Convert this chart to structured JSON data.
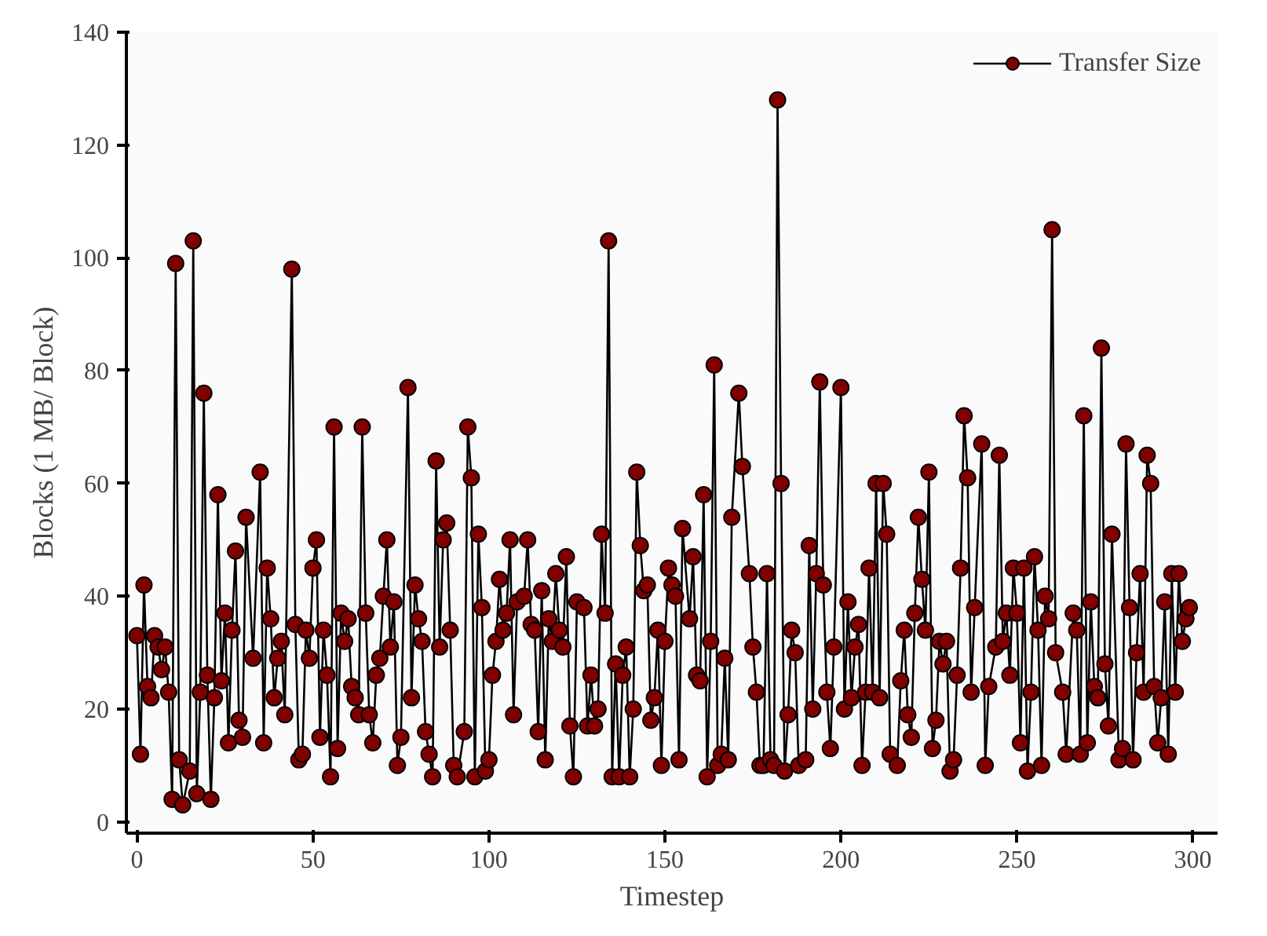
{
  "chart_data": {
    "type": "line",
    "xlabel": "Timestep",
    "ylabel": "Blocks (1 MB/ Block)",
    "xlim": [
      -3,
      307
    ],
    "ylim": [
      -2,
      140
    ],
    "xticks": [
      0,
      50,
      100,
      150,
      200,
      250,
      300
    ],
    "yticks": [
      0,
      20,
      40,
      60,
      80,
      100,
      120,
      140
    ],
    "grid": false,
    "legend": "top right",
    "marker": "circle",
    "line_style": "solid",
    "series": [
      {
        "name": "Transfer Size",
        "color": "#800000",
        "x": [
          0,
          1,
          2,
          3,
          4,
          5,
          6,
          7,
          8,
          9,
          10,
          11,
          12,
          13,
          15,
          16,
          17,
          18,
          19,
          20,
          21,
          22,
          23,
          24,
          25,
          26,
          27,
          28,
          29,
          30,
          31,
          33,
          35,
          36,
          37,
          38,
          39,
          40,
          41,
          42,
          44,
          45,
          46,
          47,
          48,
          49,
          50,
          51,
          52,
          53,
          54,
          55,
          56,
          57,
          58,
          59,
          60,
          61,
          62,
          63,
          64,
          65,
          66,
          67,
          68,
          69,
          70,
          71,
          72,
          73,
          74,
          75,
          77,
          78,
          79,
          80,
          81,
          82,
          83,
          84,
          85,
          86,
          87,
          88,
          89,
          90,
          91,
          93,
          94,
          95,
          96,
          97,
          98,
          99,
          100,
          101,
          102,
          103,
          104,
          105,
          106,
          107,
          108,
          110,
          111,
          112,
          113,
          114,
          115,
          116,
          117,
          118,
          119,
          120,
          121,
          122,
          123,
          124,
          125,
          127,
          128,
          129,
          130,
          131,
          132,
          133,
          134,
          135,
          136,
          137,
          138,
          139,
          140,
          141,
          142,
          143,
          144,
          145,
          146,
          147,
          148,
          149,
          150,
          151,
          152,
          153,
          154,
          155,
          157,
          158,
          159,
          160,
          161,
          162,
          163,
          164,
          165,
          166,
          167,
          168,
          169,
          171,
          172,
          174,
          175,
          176,
          177,
          178,
          179,
          180,
          181,
          182,
          183,
          184,
          185,
          186,
          187,
          188,
          190,
          191,
          192,
          193,
          194,
          195,
          196,
          197,
          198,
          200,
          201,
          202,
          203,
          204,
          205,
          206,
          207,
          208,
          209,
          210,
          211,
          212,
          213,
          214,
          216,
          217,
          218,
          219,
          220,
          221,
          222,
          223,
          224,
          225,
          226,
          227,
          228,
          229,
          230,
          231,
          232,
          233,
          234,
          235,
          236,
          237,
          238,
          240,
          241,
          242,
          244,
          245,
          246,
          247,
          248,
          249,
          250,
          251,
          252,
          253,
          254,
          255,
          256,
          257,
          258,
          259,
          260,
          261,
          263,
          264,
          266,
          267,
          268,
          269,
          270,
          271,
          272,
          273,
          274,
          275,
          276,
          277,
          279,
          280,
          281,
          282,
          283,
          284,
          285,
          286,
          287,
          288,
          289,
          290,
          291,
          292,
          293,
          294,
          295,
          296,
          297,
          298,
          299
        ],
        "values": [
          33,
          12,
          42,
          24,
          22,
          33,
          31,
          27,
          31,
          23,
          4,
          99,
          11,
          3,
          9,
          103,
          5,
          23,
          76,
          26,
          4,
          22,
          58,
          25,
          37,
          14,
          34,
          48,
          18,
          15,
          54,
          29,
          62,
          14,
          45,
          36,
          22,
          29,
          32,
          19,
          98,
          35,
          11,
          12,
          34,
          29,
          45,
          50,
          15,
          34,
          26,
          8,
          70,
          13,
          37,
          32,
          36,
          24,
          22,
          19,
          70,
          37,
          19,
          14,
          26,
          29,
          40,
          50,
          31,
          39,
          10,
          15,
          77,
          22,
          42,
          36,
          32,
          16,
          12,
          8,
          64,
          31,
          50,
          53,
          34,
          10,
          8,
          16,
          70,
          61,
          8,
          51,
          38,
          9,
          11,
          26,
          32,
          43,
          34,
          37,
          50,
          19,
          39,
          40,
          50,
          35,
          34,
          16,
          41,
          11,
          36,
          32,
          44,
          34,
          31,
          47,
          17,
          8,
          39,
          38,
          17,
          26,
          17,
          20,
          51,
          37,
          103,
          8,
          28,
          8,
          26,
          31,
          8,
          20,
          62,
          49,
          41,
          42,
          18,
          22,
          34,
          10,
          32,
          45,
          42,
          40,
          11,
          52,
          36,
          47,
          26,
          25,
          58,
          8,
          32,
          81,
          10,
          12,
          29,
          11,
          54,
          76,
          63,
          44,
          31,
          23,
          10,
          10,
          44,
          11,
          10,
          128,
          60,
          9,
          19,
          34,
          30,
          10,
          11,
          49,
          20,
          44,
          78,
          42,
          23,
          13,
          31,
          77,
          20,
          39,
          22,
          31,
          35,
          10,
          23,
          45,
          23,
          60,
          22,
          60,
          51,
          12,
          10,
          25,
          34,
          19,
          15,
          37,
          54,
          43,
          34,
          62,
          13,
          18,
          32,
          28,
          32,
          9,
          11,
          26,
          45,
          72,
          61,
          23,
          38,
          67,
          10,
          24,
          31,
          65,
          32,
          37,
          26,
          45,
          37,
          14,
          45,
          9,
          23,
          47,
          34,
          10,
          40,
          36,
          105,
          30,
          23,
          12,
          37,
          34,
          12,
          72,
          14,
          39,
          24,
          22,
          84,
          28,
          17,
          51,
          11,
          13,
          67,
          38,
          11,
          30,
          44,
          23,
          65,
          60,
          24,
          14,
          22,
          39,
          12,
          44,
          23,
          44,
          32,
          36,
          38
        ]
      }
    ]
  }
}
